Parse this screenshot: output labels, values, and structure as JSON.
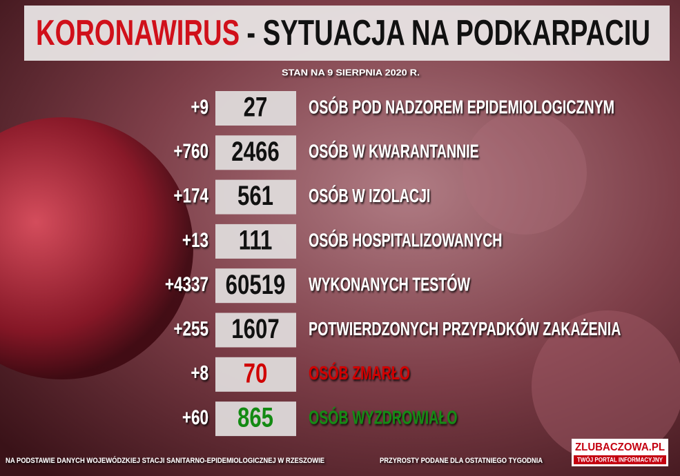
{
  "header": {
    "title_highlight": "KORONAWIRUS",
    "title_rest": "- SYTUACJA NA PODKARPACIU",
    "subtitle": "STAN NA 9 SIERPNIA 2020 R."
  },
  "rows": [
    {
      "change": "+9",
      "value": "27",
      "label": "OSÓB POD NADZOREM EPIDEMIOLOGICZNYM"
    },
    {
      "change": "+760",
      "value": "2466",
      "label": "OSÓB W KWARANTANNIE"
    },
    {
      "change": "+174",
      "value": "561",
      "label": "OSÓB W IZOLACJI"
    },
    {
      "change": "+13",
      "value": "111",
      "label": "OSÓB HOSPITALIZOWANYCH"
    },
    {
      "change": "+4337",
      "value": "60519",
      "label": "WYKONANYCH TESTÓW"
    },
    {
      "change": "+255",
      "value": "1607",
      "label": "POTWIERDZONYCH PRZYPADKÓW ZAKAŻENIA"
    },
    {
      "change": "+8",
      "value": "70",
      "label": "OSÓB ZMARŁO",
      "color": "#d00000"
    },
    {
      "change": "+60",
      "value": "865",
      "label": "OSÓB WYZDROWIAŁO",
      "color": "#138a13"
    }
  ],
  "footer": {
    "source": "NA PODSTAWIE DANYCH WOJEWÓDZKIEJ STACJI SANITARNO-EPIDEMIOLOGICZNEJ W RZESZOWIE",
    "note": "PRZYROSTY PODANE DLA OSTATNIEGO TYGODNIA",
    "logo": "ZLUBACZOWA.PL",
    "logo_tagline": "TWÓJ PORTAL INFORMACYJNY"
  }
}
